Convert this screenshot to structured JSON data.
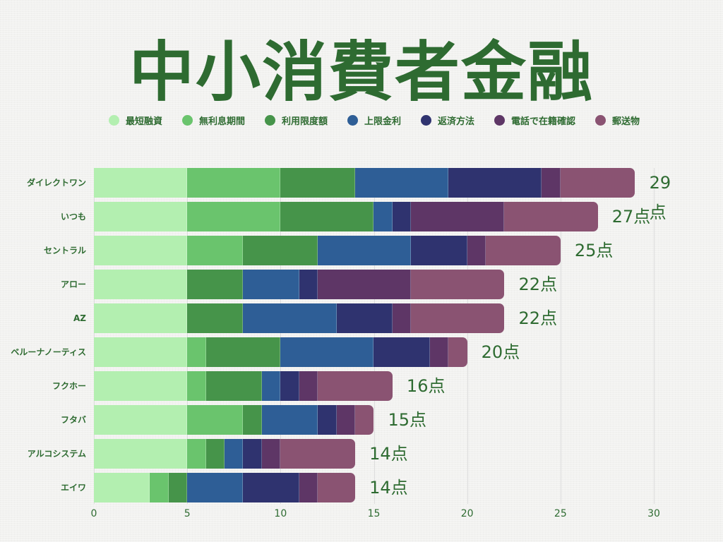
{
  "chart_data": {
    "type": "bar",
    "orientation": "horizontal",
    "stacked": true,
    "title": "中小消費者金融",
    "xlabel": "",
    "ylabel": "",
    "xlim": [
      0,
      30
    ],
    "xticks": [
      0,
      5,
      10,
      15,
      20,
      25,
      30
    ],
    "grid": true,
    "legend_position": "top",
    "categories": [
      "ダイレクトワン",
      "いつも",
      "セントラル",
      "アロー",
      "AZ",
      "ベルーナノーティス",
      "フクホー",
      "フタバ",
      "アルコシステム",
      "エイワ"
    ],
    "series": [
      {
        "name": "最短融資",
        "color": "#b3efb0",
        "values": [
          5,
          5,
          5,
          5,
          5,
          5,
          5,
          5,
          5,
          3
        ]
      },
      {
        "name": "無利息期間",
        "color": "#6ac46d",
        "values": [
          5,
          5,
          3,
          0,
          0,
          1,
          1,
          3,
          1,
          1
        ]
      },
      {
        "name": "利用限度額",
        "color": "#46944a",
        "values": [
          4,
          5,
          4,
          3,
          3,
          4,
          3,
          1,
          1,
          1
        ]
      },
      {
        "name": "上限金利",
        "color": "#2e5e96",
        "values": [
          5,
          1,
          5,
          3,
          5,
          5,
          1,
          3,
          1,
          3
        ]
      },
      {
        "name": "返済方法",
        "color": "#2f336f",
        "values": [
          5,
          1,
          3,
          1,
          3,
          3,
          1,
          1,
          1,
          3
        ]
      },
      {
        "name": "電話で在籍確認",
        "color": "#5e3666",
        "values": [
          1,
          5,
          1,
          5,
          1,
          1,
          1,
          1,
          1,
          1
        ]
      },
      {
        "name": "郵送物",
        "color": "#8a5372",
        "values": [
          4,
          5,
          4,
          5,
          5,
          1,
          4,
          1,
          4,
          2
        ]
      }
    ],
    "totals": [
      29,
      27,
      25,
      22,
      22,
      20,
      16,
      15,
      14,
      14
    ],
    "total_labels": [
      "29点",
      "27点",
      "25点",
      "22点",
      "22点",
      "20点",
      "16点",
      "15点",
      "14点",
      "14点"
    ]
  }
}
